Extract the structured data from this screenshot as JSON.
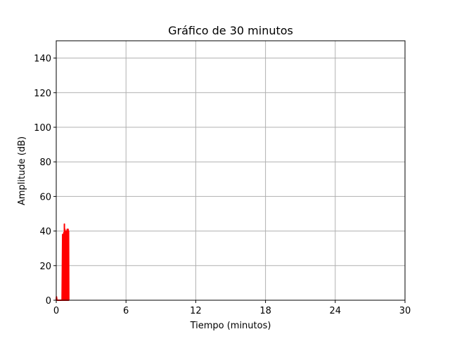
{
  "chart_data": {
    "type": "line",
    "title": "Gráfico de 30 minutos",
    "xlabel": "Tiempo (minutos)",
    "ylabel": "Amplitude (dB)",
    "xlim": [
      0,
      30
    ],
    "ylim": [
      0,
      150
    ],
    "x_ticks": [
      0,
      6,
      12,
      18,
      24,
      30
    ],
    "y_ticks": [
      0,
      20,
      40,
      60,
      80,
      100,
      120,
      140
    ],
    "grid": true,
    "legend": "none",
    "series": [
      {
        "color": "#ff0000",
        "x": [
          0.0,
          0.02,
          0.04,
          0.06,
          0.08,
          0.5,
          0.55,
          0.58,
          0.6,
          0.62,
          0.65,
          0.68,
          0.7,
          0.72,
          0.74,
          0.76,
          0.78,
          0.8,
          0.82,
          0.84,
          0.86,
          0.88,
          0.9,
          0.92,
          0.94,
          0.96,
          0.98,
          1.0,
          1.02,
          1.04,
          1.06,
          1.08,
          1.1
        ],
        "y": [
          0,
          2,
          1,
          0,
          0,
          0,
          38,
          0,
          38,
          0,
          39,
          0,
          44,
          0,
          41,
          0,
          40,
          0,
          39,
          0,
          40,
          0,
          40,
          0,
          41,
          0,
          40,
          0,
          41,
          0,
          40,
          0,
          0
        ]
      }
    ]
  }
}
